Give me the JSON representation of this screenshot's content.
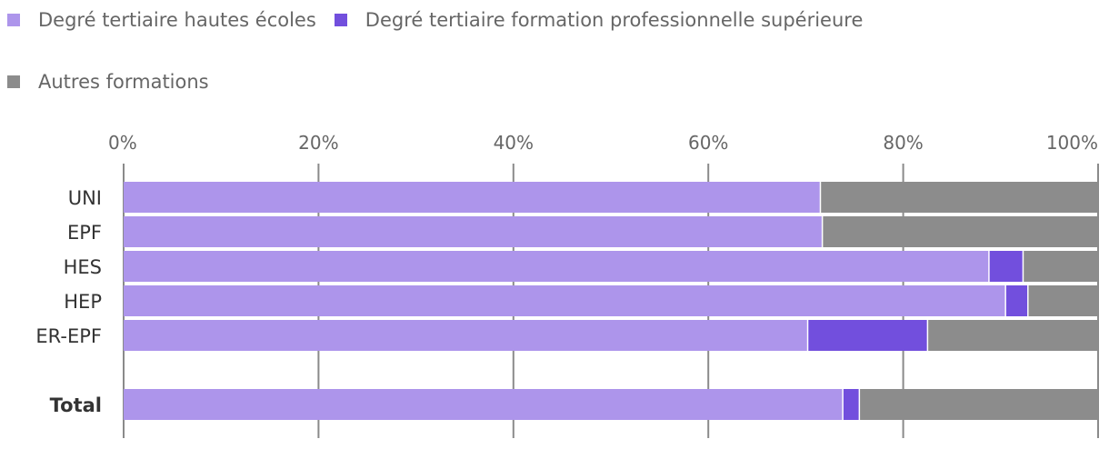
{
  "chart_data": {
    "type": "bar",
    "orientation": "horizontal",
    "stacked": true,
    "categories": [
      "UNI",
      "EPF",
      "HES",
      "HEP",
      "ER-EPF",
      "Total"
    ],
    "emphasized_categories": [
      "Total"
    ],
    "series": [
      {
        "name": "Degré tertiaire hautes écoles",
        "color": "#ad95eb",
        "values": [
          71.5,
          71.7,
          88.8,
          90.5,
          70.2,
          73.8
        ]
      },
      {
        "name": "Degré tertiaire formation professionnelle supérieure",
        "color": "#724fdd",
        "values": [
          0,
          0,
          3.5,
          2.3,
          12.3,
          1.7
        ]
      },
      {
        "name": "Autres formations",
        "color": "#8c8c8c",
        "values": [
          28.5,
          28.3,
          7.7,
          7.2,
          17.5,
          24.5
        ]
      }
    ],
    "x_ticks": [
      "0%",
      "20%",
      "40%",
      "60%",
      "80%",
      "100%"
    ],
    "xlim": [
      0,
      100
    ],
    "grid": true,
    "legend_position": "top-left"
  }
}
